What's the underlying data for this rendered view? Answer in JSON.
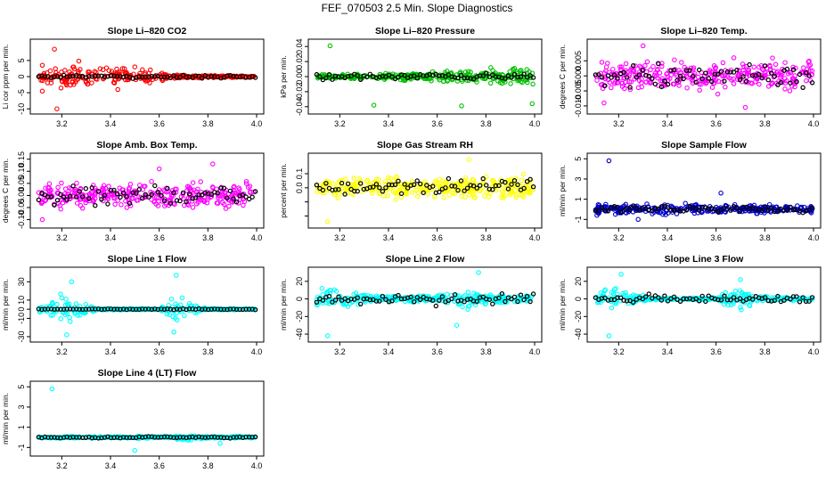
{
  "title": "FEF_070503  2.5 Min. Slope Diagnostics",
  "chart_data": [
    {
      "type": "scatter",
      "title": "Slope Li–820 CO2",
      "ylabel": "Li cor ppm per min.",
      "color": "#ff0000",
      "xlim": [
        3.1,
        4.0
      ],
      "ylim": [
        -10.5,
        10.5
      ],
      "xticks": [
        3.2,
        3.4,
        3.6,
        3.8,
        4.0
      ],
      "xtick_labels": [
        "3.2",
        "3.4",
        "3.6",
        "3.8",
        "4.0"
      ],
      "yticks": [
        -10,
        -5,
        0,
        5
      ],
      "ytick_labels": [
        "-10",
        "-5",
        "0",
        "5"
      ],
      "spread": [
        {
          "x": 3.1,
          "s": 1.2
        },
        {
          "x": 3.2,
          "s": 3.0
        },
        {
          "x": 3.35,
          "s": 2.2
        },
        {
          "x": 3.55,
          "s": 1.6
        },
        {
          "x": 3.65,
          "s": 0.4
        },
        {
          "x": 4.0,
          "s": 0.2
        }
      ],
      "outliers": [
        [
          3.17,
          8.5
        ],
        [
          3.12,
          -4.5
        ],
        [
          3.18,
          -10
        ],
        [
          3.27,
          4.8
        ],
        [
          3.12,
          3.5
        ],
        [
          3.43,
          -4.0
        ],
        [
          3.5,
          3.0
        ]
      ],
      "black_spread": 0.4
    },
    {
      "type": "scatter",
      "title": "Slope Li–820 Pressure",
      "ylabel": "kPa per min.",
      "color": "#00c000",
      "xlim": [
        3.1,
        4.0
      ],
      "ylim": [
        -0.045,
        0.045
      ],
      "xticks": [
        3.2,
        3.4,
        3.6,
        3.8,
        4.0
      ],
      "xtick_labels": [
        "3.2",
        "3.4",
        "3.6",
        "3.8",
        "4.0"
      ],
      "yticks": [
        -0.04,
        -0.02,
        0.0,
        0.02,
        0.04
      ],
      "ytick_labels": [
        "-0.04",
        "-0.02",
        "0.00",
        "0.02",
        "0.04"
      ],
      "spread": [
        {
          "x": 3.1,
          "s": 0.002
        },
        {
          "x": 3.5,
          "s": 0.004
        },
        {
          "x": 3.75,
          "s": 0.007
        },
        {
          "x": 4.0,
          "s": 0.009
        }
      ],
      "outliers": [
        [
          3.16,
          0.041
        ],
        [
          3.34,
          -0.038
        ],
        [
          3.7,
          -0.039
        ],
        [
          3.99,
          -0.036
        ],
        [
          3.82,
          0.012
        ]
      ],
      "black_spread": 0.003
    },
    {
      "type": "scatter",
      "title": "Slope Li–820 Temp.",
      "ylabel": "degrees C per min.",
      "color": "#ff00ff",
      "xlim": [
        3.1,
        4.0
      ],
      "ylim": [
        -0.0115,
        0.011
      ],
      "xticks": [
        3.2,
        3.4,
        3.6,
        3.8,
        4.0
      ],
      "xtick_labels": [
        "3.2",
        "3.4",
        "3.6",
        "3.8",
        "4.0"
      ],
      "yticks": [
        -0.01,
        -0.005,
        0.0,
        0.005
      ],
      "ytick_labels": [
        "-0.010",
        "-0.005",
        "0.000",
        "0.005"
      ],
      "spread": [
        {
          "x": 3.1,
          "s": 0.004
        },
        {
          "x": 4.0,
          "s": 0.004
        }
      ],
      "outliers": [
        [
          3.3,
          0.01
        ],
        [
          3.72,
          -0.0105
        ],
        [
          3.14,
          -0.009
        ]
      ],
      "black_spread": 0.003
    },
    {
      "type": "scatter",
      "title": "Slope Amb. Box Temp.",
      "ylabel": "degrees C per min.",
      "color": "#ff00ff",
      "xlim": [
        3.1,
        4.0
      ],
      "ylim": [
        -0.12,
        0.16
      ],
      "xticks": [
        3.2,
        3.4,
        3.6,
        3.8,
        4.0
      ],
      "xtick_labels": [
        "3.2",
        "3.4",
        "3.6",
        "3.8",
        "4.0"
      ],
      "yticks": [
        -0.1,
        -0.05,
        0.0,
        0.05,
        0.1,
        0.15
      ],
      "ytick_labels": [
        "-0.10",
        "-0.05",
        "0.00",
        "0.05",
        "0.10",
        "0.15"
      ],
      "spread": [
        {
          "x": 3.1,
          "s": 0.04
        },
        {
          "x": 4.0,
          "s": 0.04
        }
      ],
      "outliers": [
        [
          3.82,
          0.13
        ],
        [
          3.6,
          0.11
        ],
        [
          3.12,
          -0.1
        ]
      ],
      "black_spread": 0.03
    },
    {
      "type": "scatter",
      "title": "Slope Gas Stream RH",
      "ylabel": "percent per min.",
      "color": "#ffff00",
      "xlim": [
        3.1,
        4.0
      ],
      "ylim": [
        -0.26,
        0.22
      ],
      "xticks": [
        3.2,
        3.4,
        3.6,
        3.8,
        4.0
      ],
      "xtick_labels": [
        "3.2",
        "3.4",
        "3.6",
        "3.8",
        "4.0"
      ],
      "yticks": [
        -0.2,
        -0.1,
        0.0,
        0.1
      ],
      "ytick_labels": [
        "",
        "",
        "0.0",
        "0.1"
      ],
      "spread": [
        {
          "x": 3.1,
          "s": 0.06
        },
        {
          "x": 4.0,
          "s": 0.06
        }
      ],
      "outliers": [
        [
          3.15,
          -0.24
        ],
        [
          3.73,
          0.2
        ]
      ],
      "black_spread": 0.05
    },
    {
      "type": "scatter",
      "title": "Slope Sample Flow",
      "ylabel": "ml/min per min.",
      "color": "#0000cc",
      "xlim": [
        3.1,
        4.0
      ],
      "ylim": [
        -1.5,
        5.2
      ],
      "xticks": [
        3.2,
        3.4,
        3.6,
        3.8,
        4.0
      ],
      "xtick_labels": [
        "3.2",
        "3.4",
        "3.6",
        "3.8",
        "4.0"
      ],
      "yticks": [
        -1,
        1,
        3,
        5
      ],
      "ytick_labels": [
        "-1",
        "1",
        "3",
        "5"
      ],
      "spread": [
        {
          "x": 3.1,
          "s": 0.4
        },
        {
          "x": 4.0,
          "s": 0.3
        }
      ],
      "outliers": [
        [
          3.16,
          4.8
        ],
        [
          3.28,
          -1.0
        ],
        [
          3.62,
          1.6
        ]
      ],
      "black_spread": 0.3
    },
    {
      "type": "scatter",
      "title": "Slope Line 1 Flow",
      "ylabel": "ml/min per min.",
      "color": "#00ffff",
      "xlim": [
        3.1,
        4.0
      ],
      "ylim": [
        -32,
        42
      ],
      "xticks": [
        3.2,
        3.4,
        3.6,
        3.8,
        4.0
      ],
      "xtick_labels": [
        "3.2",
        "3.4",
        "3.6",
        "3.8",
        "4.0"
      ],
      "yticks": [
        -30,
        -10,
        0,
        10,
        30
      ],
      "ytick_labels": [
        "-30",
        "-10",
        "0",
        "10",
        "30"
      ],
      "spread": [
        {
          "x": 3.1,
          "s": 2
        },
        {
          "x": 3.15,
          "s": 6
        },
        {
          "x": 3.22,
          "s": 14
        },
        {
          "x": 3.28,
          "s": 5
        },
        {
          "x": 3.35,
          "s": 0.6
        },
        {
          "x": 3.6,
          "s": 0.6
        },
        {
          "x": 3.67,
          "s": 12
        },
        {
          "x": 3.74,
          "s": 5
        },
        {
          "x": 3.8,
          "s": 0.6
        },
        {
          "x": 4.0,
          "s": 0.6
        }
      ],
      "outliers": [
        [
          3.24,
          30
        ],
        [
          3.22,
          -28
        ],
        [
          3.67,
          37
        ],
        [
          3.66,
          -25
        ]
      ],
      "black_spread": 0.5
    },
    {
      "type": "scatter",
      "title": "Slope Line 2 Flow",
      "ylabel": "ml/min per min.",
      "color": "#00ffff",
      "xlim": [
        3.1,
        4.0
      ],
      "ylim": [
        -45,
        32
      ],
      "xticks": [
        3.2,
        3.4,
        3.6,
        3.8,
        4.0
      ],
      "xtick_labels": [
        "3.2",
        "3.4",
        "3.6",
        "3.8",
        "4.0"
      ],
      "yticks": [
        -40,
        -20,
        0,
        20
      ],
      "ytick_labels": [
        "-40",
        "-20",
        "0",
        "20"
      ],
      "spread": [
        {
          "x": 3.1,
          "s": 8
        },
        {
          "x": 3.2,
          "s": 10
        },
        {
          "x": 3.3,
          "s": 4
        },
        {
          "x": 3.4,
          "s": 2
        },
        {
          "x": 3.6,
          "s": 3
        },
        {
          "x": 3.68,
          "s": 10
        },
        {
          "x": 3.78,
          "s": 6
        },
        {
          "x": 4.0,
          "s": 2
        }
      ],
      "outliers": [
        [
          3.15,
          -42
        ],
        [
          3.77,
          30
        ],
        [
          3.68,
          -30
        ]
      ],
      "black_spread": 5
    },
    {
      "type": "scatter",
      "title": "Slope Line 3 Flow",
      "ylabel": "ml/min per min.",
      "color": "#00ffff",
      "xlim": [
        3.1,
        4.0
      ],
      "ylim": [
        -45,
        32
      ],
      "xticks": [
        3.2,
        3.4,
        3.6,
        3.8,
        4.0
      ],
      "xtick_labels": [
        "3.2",
        "3.4",
        "3.6",
        "3.8",
        "4.0"
      ],
      "yticks": [
        -40,
        -20,
        0,
        20
      ],
      "ytick_labels": [
        "-40",
        "-20",
        "0",
        "20"
      ],
      "spread": [
        {
          "x": 3.1,
          "s": 6
        },
        {
          "x": 3.17,
          "s": 12
        },
        {
          "x": 3.25,
          "s": 5
        },
        {
          "x": 3.35,
          "s": 1
        },
        {
          "x": 3.6,
          "s": 1
        },
        {
          "x": 3.68,
          "s": 10
        },
        {
          "x": 3.76,
          "s": 4
        },
        {
          "x": 3.85,
          "s": 1.5
        },
        {
          "x": 4.0,
          "s": 1.5
        }
      ],
      "outliers": [
        [
          3.16,
          -42
        ],
        [
          3.21,
          28
        ],
        [
          3.7,
          22
        ]
      ],
      "black_spread": 4
    },
    {
      "type": "scatter",
      "title": "Slope Line 4 (LT) Flow",
      "ylabel": "ml/min per min.",
      "color": "#00ffff",
      "xlim": [
        3.1,
        4.0
      ],
      "ylim": [
        -1.5,
        5.2
      ],
      "xticks": [
        3.2,
        3.4,
        3.6,
        3.8,
        4.0
      ],
      "xtick_labels": [
        "3.2",
        "3.4",
        "3.6",
        "3.8",
        "4.0"
      ],
      "yticks": [
        -1,
        1,
        3,
        5
      ],
      "ytick_labels": [
        "-1",
        "1",
        "3",
        "5"
      ],
      "spread": [
        {
          "x": 3.1,
          "s": 0.08
        },
        {
          "x": 3.65,
          "s": 0.1
        },
        {
          "x": 3.7,
          "s": 0.3
        },
        {
          "x": 3.8,
          "s": 0.1
        },
        {
          "x": 4.0,
          "s": 0.08
        }
      ],
      "outliers": [
        [
          3.16,
          4.8
        ],
        [
          3.5,
          -1.3
        ],
        [
          3.85,
          -0.6
        ]
      ],
      "black_spread": 0.05
    }
  ]
}
